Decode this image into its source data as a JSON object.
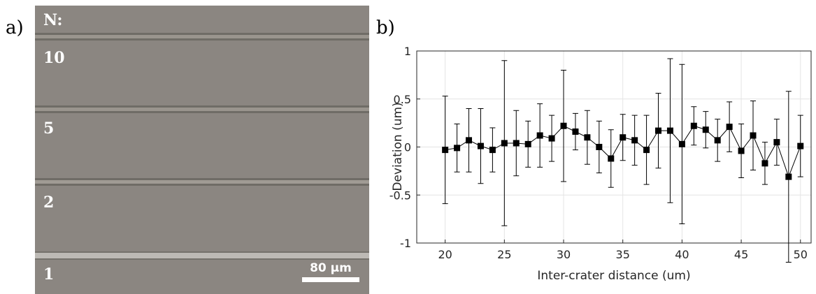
{
  "panel_a": {
    "label": "a)",
    "row_labels": [
      "N:",
      "10",
      "5",
      "2",
      "1"
    ],
    "scale_bar": "80 µm"
  },
  "chart_data": {
    "type": "errorbar",
    "panel_label": "b)",
    "xlabel": "Inter-crater distance (um)",
    "ylabel": "Deviation (um)",
    "x": [
      20,
      21,
      22,
      23,
      24,
      25,
      26,
      27,
      28,
      29,
      30,
      31,
      32,
      33,
      34,
      35,
      36,
      37,
      38,
      39,
      40,
      41,
      42,
      43,
      44,
      45,
      46,
      47,
      48,
      49,
      50
    ],
    "series": [
      {
        "color": "#000000",
        "values": [
          -0.03,
          -0.01,
          0.07,
          0.01,
          -0.03,
          0.04,
          0.04,
          0.03,
          0.12,
          0.09,
          0.22,
          0.16,
          0.1,
          0,
          -0.12,
          0.1,
          0.07,
          -0.03,
          0.17,
          0.17,
          0.03,
          0.22,
          0.18,
          0.07,
          0.21,
          -0.04,
          0.12,
          -0.17,
          0.05,
          -0.31,
          0.01
        ],
        "errors": [
          0.56,
          0.25,
          0.33,
          0.39,
          0.23,
          0.86,
          0.34,
          0.24,
          0.33,
          0.24,
          0.58,
          0.19,
          0.28,
          0.27,
          0.3,
          0.24,
          0.26,
          0.36,
          0.39,
          0.75,
          0.83,
          0.2,
          0.19,
          0.22,
          0.26,
          0.28,
          0.36,
          0.22,
          0.24,
          0.89,
          0.32
        ]
      }
    ],
    "xlim": [
      17.6,
      50.9
    ],
    "ylim": [
      -1,
      1
    ],
    "xticks": [
      20,
      25,
      30,
      35,
      40,
      45,
      50
    ],
    "yticks": [
      -1,
      -0.5,
      0,
      0.5,
      1
    ],
    "grid": true
  }
}
